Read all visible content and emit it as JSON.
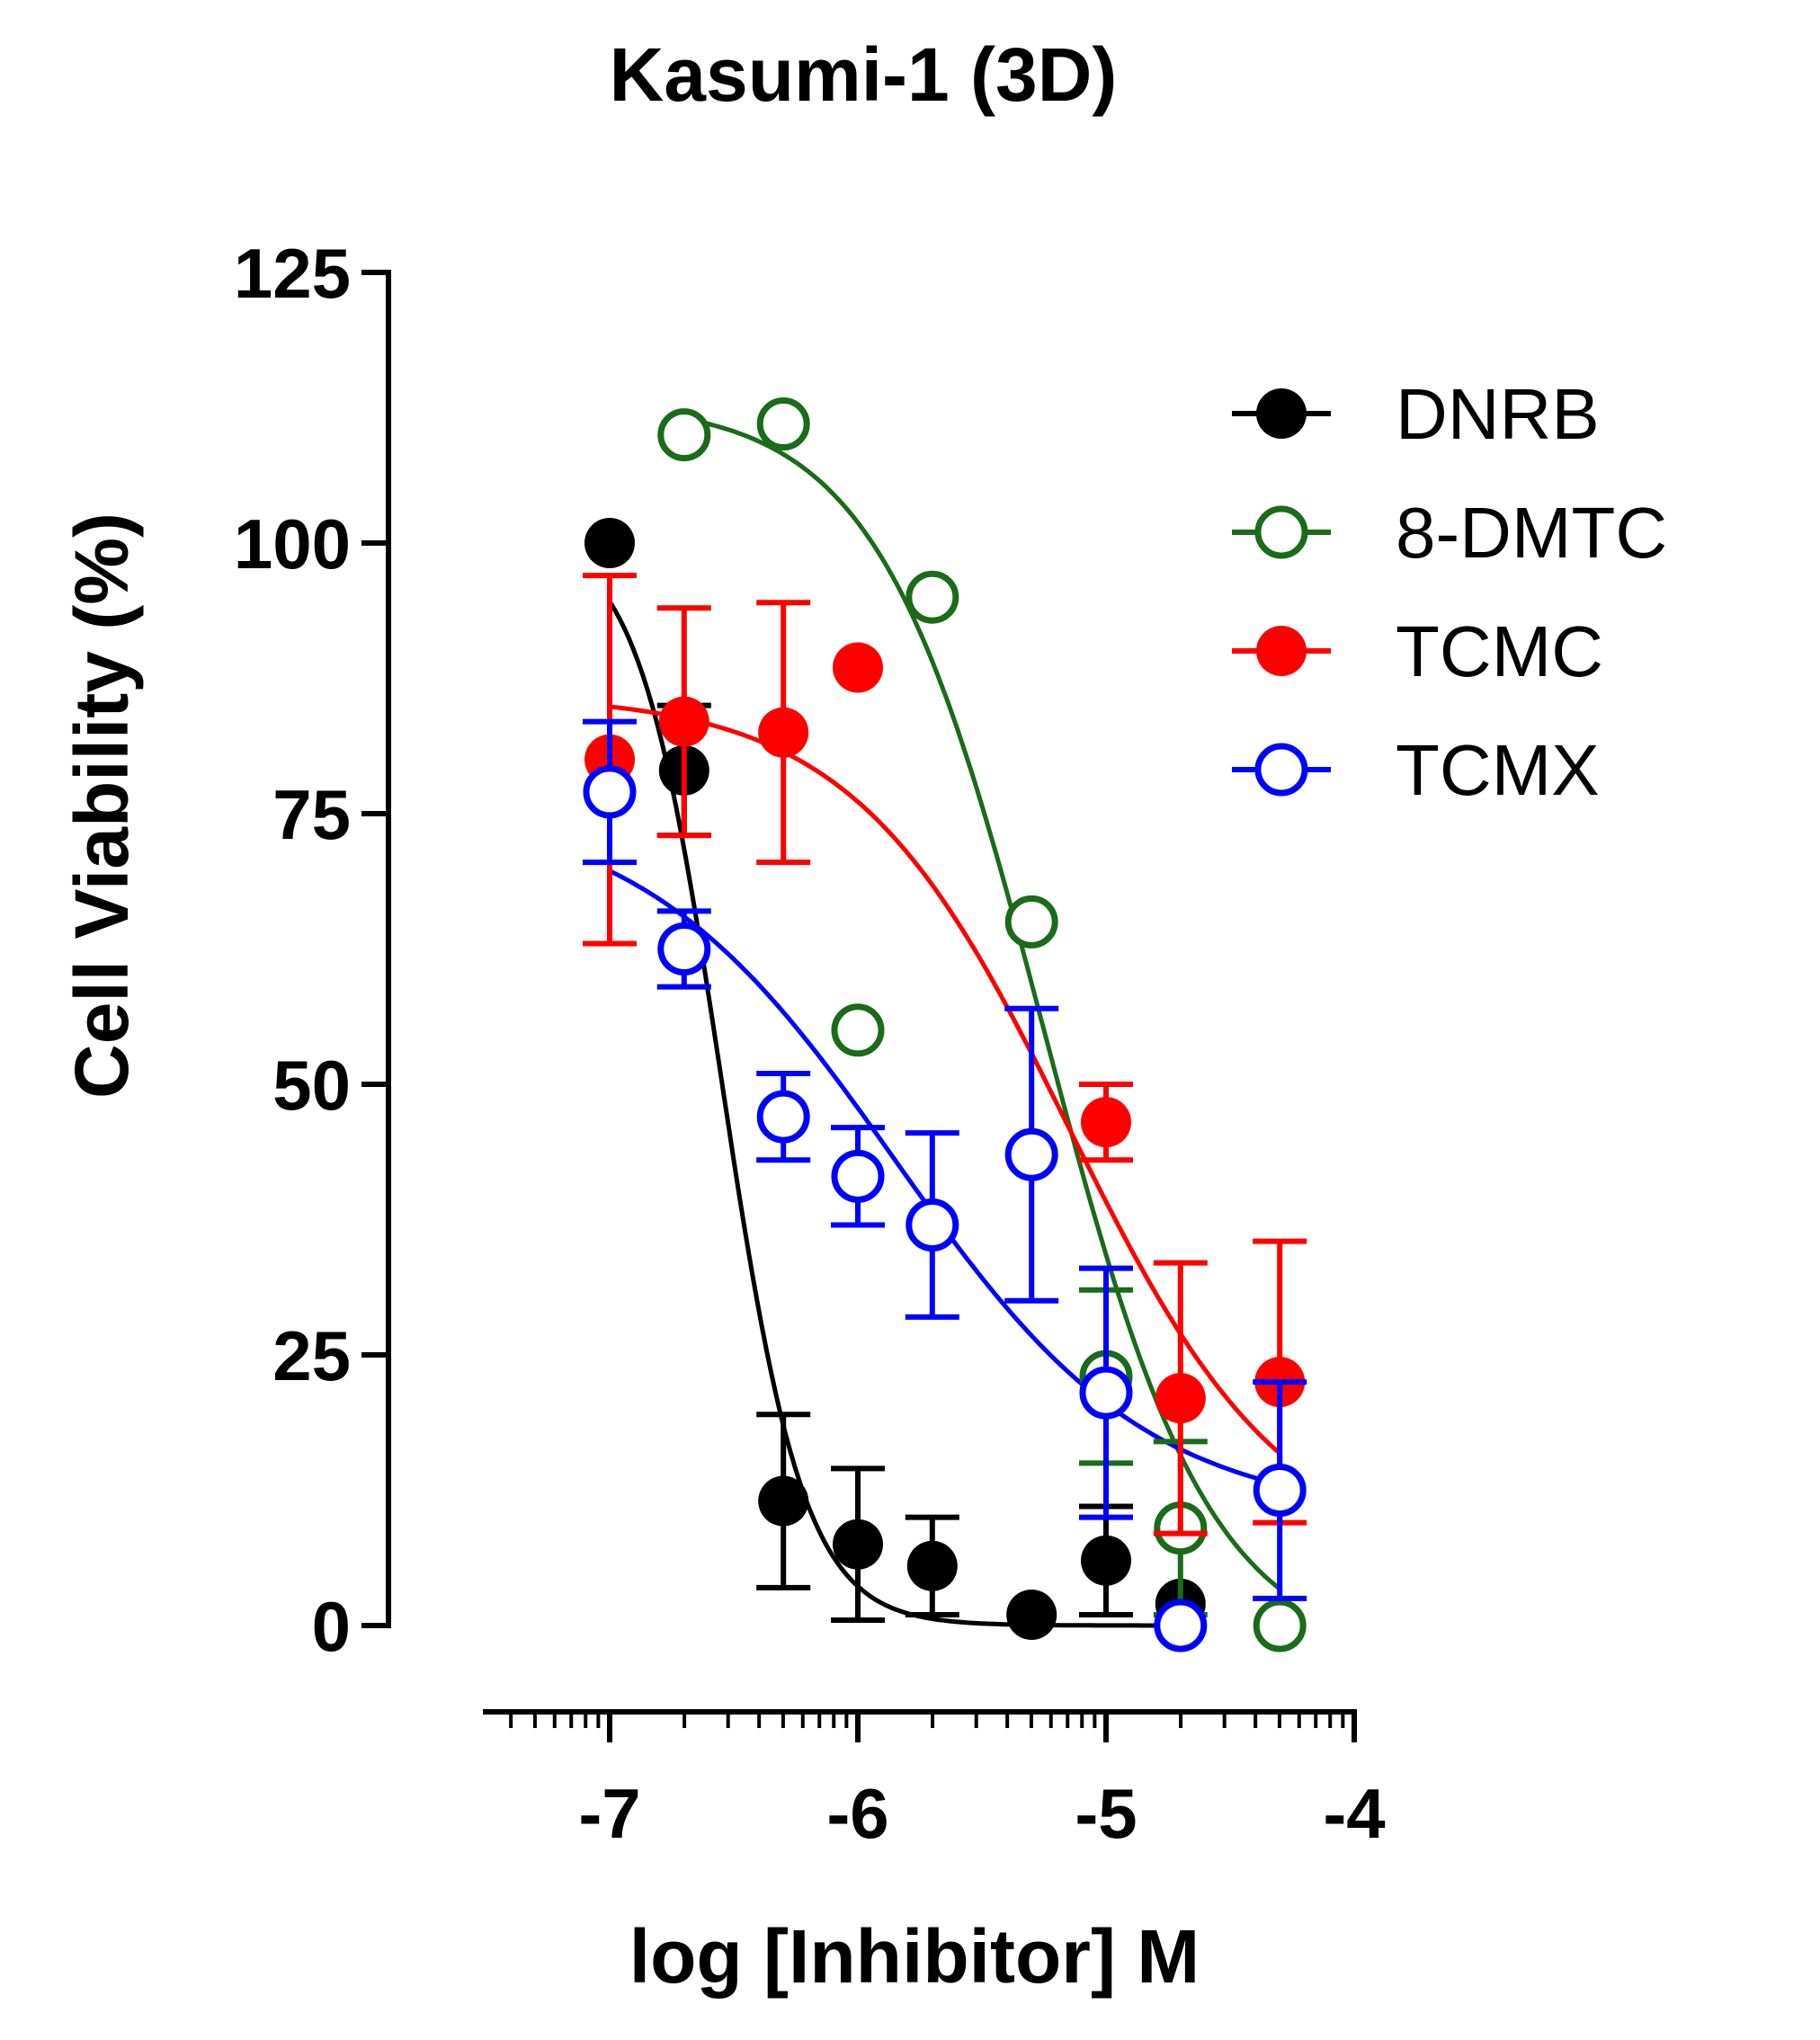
{
  "chart_data": {
    "type": "scatter",
    "title": "Kasumi-1 (3D)",
    "xlabel": "log [Inhibitor] M",
    "ylabel": "Cell Viability (%)",
    "xlim": [
      -7.5,
      -4
    ],
    "ylim": [
      0,
      125
    ],
    "xticks": [
      -7,
      -6,
      -5,
      -4
    ],
    "xtick_labels": [
      "-7",
      "-6",
      "-5",
      "-4"
    ],
    "yticks": [
      0,
      25,
      50,
      75,
      100,
      125
    ],
    "ytick_labels": [
      "0",
      "25",
      "50",
      "75",
      "100",
      "125"
    ],
    "grid": false,
    "legend_position": "top-right",
    "series": [
      {
        "name": "DNRB",
        "color": "#000000",
        "marker": "filled-circle",
        "points": [
          {
            "x": -7.0,
            "y": 100,
            "err": 0
          },
          {
            "x": -6.7,
            "y": 79,
            "err": 6
          },
          {
            "x": -6.3,
            "y": 11.5,
            "err": 8
          },
          {
            "x": -6.0,
            "y": 7.5,
            "err": 7
          },
          {
            "x": -5.7,
            "y": 5.5,
            "err": 4.5
          },
          {
            "x": -5.3,
            "y": 1,
            "err": 0
          },
          {
            "x": -5.0,
            "y": 6,
            "err": 5
          },
          {
            "x": -4.7,
            "y": 2,
            "err": 0
          }
        ],
        "fit": {
          "bottom": 0,
          "top": 101,
          "log_ic50": -6.55,
          "hill": 2.6,
          "x_range": [
            -7.0,
            -4.7
          ]
        }
      },
      {
        "name": "8-DMTC",
        "color": "#1a6b1a",
        "marker": "open-circle",
        "points": [
          {
            "x": -6.7,
            "y": 110,
            "err": 0
          },
          {
            "x": -6.3,
            "y": 111,
            "err": 0
          },
          {
            "x": -6.0,
            "y": 55,
            "err": 0
          },
          {
            "x": -5.7,
            "y": 95,
            "err": 0
          },
          {
            "x": -5.3,
            "y": 65,
            "err": 0
          },
          {
            "x": -5.0,
            "y": 23,
            "err": 8
          },
          {
            "x": -4.7,
            "y": 9,
            "err": 8
          },
          {
            "x": -4.3,
            "y": 0,
            "err": 0
          }
        ],
        "fit": {
          "bottom": -3,
          "top": 113,
          "log_ic50": -5.25,
          "hill": 1.3,
          "x_range": [
            -6.7,
            -4.3
          ]
        }
      },
      {
        "name": "TCMC",
        "color": "#ff0000",
        "marker": "filled-circle",
        "points": [
          {
            "x": -7.0,
            "y": 80,
            "err": 17
          },
          {
            "x": -6.7,
            "y": 83.5,
            "err": 10.5
          },
          {
            "x": -6.3,
            "y": 82.5,
            "err": 12
          },
          {
            "x": -6.0,
            "y": 88.5,
            "err": 0
          },
          {
            "x": -5.0,
            "y": 46.5,
            "err": 3.5
          },
          {
            "x": -4.7,
            "y": 21,
            "err": 12.5
          },
          {
            "x": -4.3,
            "y": 22.5,
            "err": 13
          }
        ],
        "fit": {
          "bottom": 6,
          "top": 86,
          "log_ic50": -5.15,
          "hill": 1.0,
          "x_range": [
            -7.0,
            -4.3
          ]
        }
      },
      {
        "name": "TCMX",
        "color": "#0000ff",
        "marker": "open-circle",
        "points": [
          {
            "x": -7.0,
            "y": 77,
            "err": 6.5
          },
          {
            "x": -6.7,
            "y": 62.5,
            "err": 3.5
          },
          {
            "x": -6.3,
            "y": 47,
            "err": 4
          },
          {
            "x": -6.0,
            "y": 41.5,
            "err": 4.5
          },
          {
            "x": -5.7,
            "y": 37,
            "err": 8.5
          },
          {
            "x": -5.3,
            "y": 43.5,
            "err": 13.5
          },
          {
            "x": -5.0,
            "y": 21.5,
            "err": 11.5
          },
          {
            "x": -4.7,
            "y": 0,
            "err": 0
          },
          {
            "x": -4.3,
            "y": 12.5,
            "err": 10
          }
        ],
        "fit": {
          "bottom": 10,
          "top": 76,
          "log_ic50": -5.85,
          "hill": 0.85,
          "x_range": [
            -7.0,
            -4.3
          ]
        }
      }
    ]
  }
}
